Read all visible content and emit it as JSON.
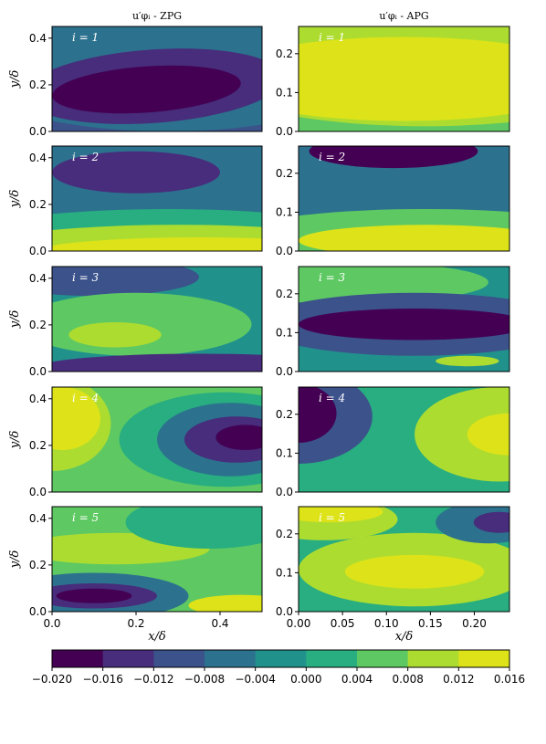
{
  "chart_data": {
    "type": "heatmap",
    "columns": [
      {
        "title": "u′φᵢ - ZPG",
        "xlabel": "x/δ",
        "xlim": [
          0.0,
          0.5
        ],
        "xticks": [
          "0.0",
          "0.2",
          "0.4"
        ],
        "ylim": [
          0.0,
          0.45
        ],
        "yticks": [
          "0.0",
          "0.2",
          "0.4"
        ]
      },
      {
        "title": "u′φᵢ - APG",
        "xlabel": "x/δ",
        "xlim": [
          0.0,
          0.24
        ],
        "xticks": [
          "0.00",
          "0.05",
          "0.10",
          "0.15",
          "0.20"
        ],
        "ylim": [
          0.0,
          0.27
        ],
        "yticks": [
          "0.0",
          "0.1",
          "0.2"
        ]
      }
    ],
    "ylabel": "y/δ",
    "panels": [
      {
        "row": 1,
        "col": 1,
        "label": "i = 1"
      },
      {
        "row": 1,
        "col": 2,
        "label": "i = 1"
      },
      {
        "row": 2,
        "col": 1,
        "label": "i = 2"
      },
      {
        "row": 2,
        "col": 2,
        "label": "i = 2"
      },
      {
        "row": 3,
        "col": 1,
        "label": "i = 3"
      },
      {
        "row": 3,
        "col": 2,
        "label": "i = 3"
      },
      {
        "row": 4,
        "col": 1,
        "label": "i = 4"
      },
      {
        "row": 4,
        "col": 2,
        "label": "i = 4"
      },
      {
        "row": 5,
        "col": 1,
        "label": "i = 5"
      },
      {
        "row": 5,
        "col": 2,
        "label": "i = 5"
      }
    ],
    "colorbar": {
      "min": -0.02,
      "max": 0.016,
      "ticks": [
        "−0.020",
        "−0.016",
        "−0.012",
        "−0.008",
        "−0.004",
        "0.000",
        "0.004",
        "0.008",
        "0.012",
        "0.016"
      ],
      "colors": [
        "#440154",
        "#472d7b",
        "#3b528b",
        "#2c728e",
        "#21918c",
        "#28ae80",
        "#5ec962",
        "#addc30",
        "#dde318"
      ]
    }
  }
}
